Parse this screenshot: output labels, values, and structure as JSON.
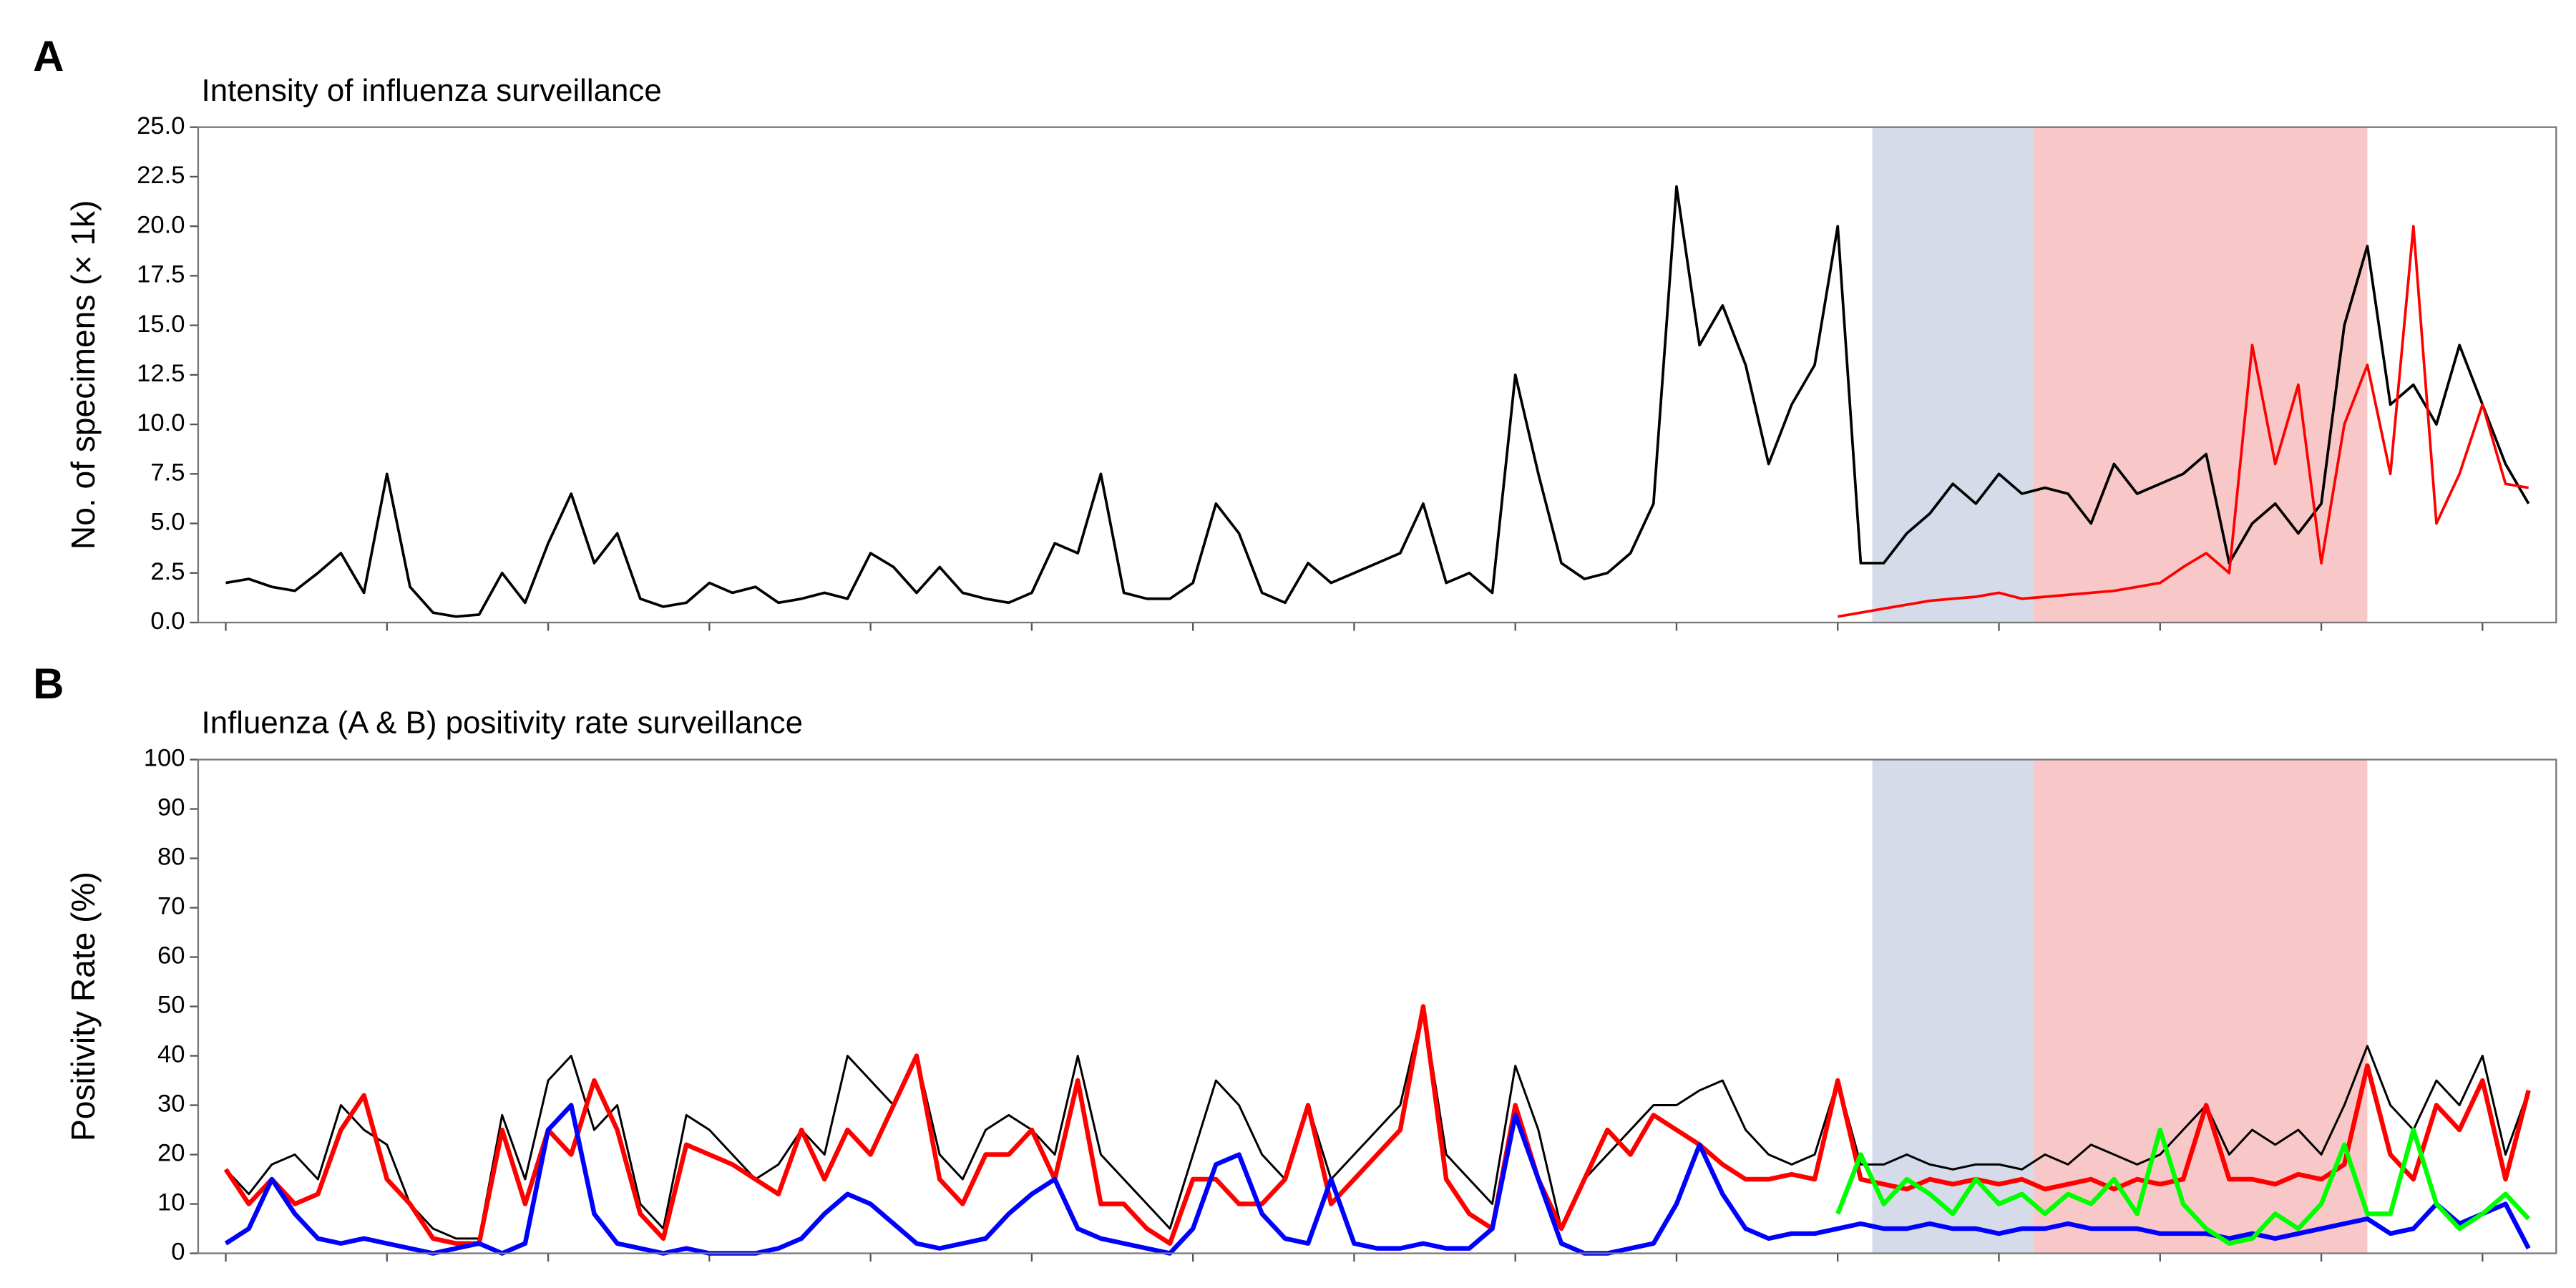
{
  "chart_data": [
    {
      "panel": "A",
      "type": "line",
      "title": "Intensity of influenza surveillance",
      "y_label": "No. of specimens (× 1k)",
      "x": [
        0,
        1,
        2,
        3,
        4,
        5,
        6,
        7,
        8,
        9,
        10,
        11,
        12,
        13,
        14,
        15,
        16,
        17,
        18,
        19,
        20,
        21,
        22,
        23,
        24,
        25,
        26,
        27,
        28,
        29,
        30,
        31,
        32,
        33,
        34,
        35,
        36,
        37,
        38,
        39,
        40,
        41,
        42,
        43,
        44,
        45,
        46,
        47,
        48,
        49,
        50,
        51,
        52,
        53,
        54,
        55,
        56,
        57,
        58,
        59,
        60,
        61,
        62,
        63,
        64,
        65,
        66,
        67,
        68,
        69,
        70,
        71,
        72,
        73,
        74,
        75,
        76,
        77,
        78,
        79,
        80,
        81,
        82,
        83,
        84,
        85,
        86,
        87,
        88,
        89,
        90,
        91,
        92,
        93,
        94,
        95,
        96,
        97,
        98,
        99,
        100
      ],
      "xlim": [
        -1.2,
        101.2
      ],
      "xticks": [
        0,
        7,
        14,
        21,
        28,
        35,
        42,
        49,
        56,
        63,
        70,
        77,
        84,
        91,
        98
      ],
      "ylim": [
        0,
        25
      ],
      "yticks": [
        {
          "value": 0,
          "label": "0.0"
        },
        {
          "value": 2.5,
          "label": "2.5"
        },
        {
          "value": 5,
          "label": "5.0"
        },
        {
          "value": 7.5,
          "label": "7.5"
        },
        {
          "value": 10,
          "label": "10.0"
        },
        {
          "value": 12.5,
          "label": "12.5"
        },
        {
          "value": 15,
          "label": "15.0"
        },
        {
          "value": 17.5,
          "label": "17.5"
        },
        {
          "value": 20,
          "label": "20.0"
        },
        {
          "value": 22.5,
          "label": "22.5"
        },
        {
          "value": 25,
          "label": "25.0"
        }
      ],
      "shaded_regions": [
        {
          "start": 71.5,
          "end": 78.5,
          "color": "#d6dbea"
        },
        {
          "start": 78.5,
          "end": 93.0,
          "color": "#f8c8c8"
        }
      ],
      "series": [
        {
          "color": "#000000",
          "line_width": 1.6,
          "values": [
            2.0,
            2.2,
            1.8,
            1.6,
            2.5,
            3.5,
            1.5,
            7.5,
            1.8,
            0.5,
            0.3,
            0.4,
            2.5,
            1.0,
            4.0,
            6.5,
            3.0,
            4.5,
            1.2,
            0.8,
            1.0,
            2.0,
            1.5,
            1.8,
            1.0,
            1.2,
            1.5,
            1.2,
            3.5,
            2.8,
            1.5,
            2.8,
            1.5,
            1.2,
            1.0,
            1.5,
            4.0,
            3.5,
            7.5,
            1.5,
            1.2,
            1.2,
            2.0,
            6.0,
            4.5,
            1.5,
            1.0,
            3.0,
            2.0,
            2.5,
            3.0,
            3.5,
            6.0,
            2.0,
            2.5,
            1.5,
            12.5,
            7.5,
            3.0,
            2.2,
            2.5,
            3.5,
            6.0,
            22.0,
            14.0,
            16.0,
            13.0,
            8.0,
            11.0,
            13.0,
            20.0,
            3.0,
            3.0,
            4.5,
            5.5,
            7.0,
            6.0,
            7.5,
            6.5,
            6.8,
            6.5,
            5.0,
            8.0,
            6.5,
            7.0,
            7.5,
            8.5,
            3.0,
            5.0,
            6.0,
            4.5,
            6.0,
            15.0,
            19.0,
            11.0,
            12.0,
            10.0,
            14.0,
            11.0,
            8.0,
            6.0
          ]
        },
        {
          "color": "#ff0000",
          "line_width": 1.6,
          "values": [
            null,
            null,
            null,
            null,
            null,
            null,
            null,
            null,
            null,
            null,
            null,
            null,
            null,
            null,
            null,
            null,
            null,
            null,
            null,
            null,
            null,
            null,
            null,
            null,
            null,
            null,
            null,
            null,
            null,
            null,
            null,
            null,
            null,
            null,
            null,
            null,
            null,
            null,
            null,
            null,
            null,
            null,
            null,
            null,
            null,
            null,
            null,
            null,
            null,
            null,
            null,
            null,
            null,
            null,
            null,
            null,
            null,
            null,
            null,
            null,
            null,
            null,
            null,
            null,
            null,
            null,
            null,
            null,
            null,
            null,
            0.3,
            0.5,
            0.7,
            0.9,
            1.1,
            1.2,
            1.3,
            1.5,
            1.2,
            1.3,
            1.4,
            1.5,
            1.6,
            1.8,
            2.0,
            2.8,
            3.5,
            2.5,
            14.0,
            8.0,
            12.0,
            3.0,
            10.0,
            13.0,
            7.5,
            20.0,
            5.0,
            7.5,
            11.0,
            7.0,
            6.8
          ]
        }
      ]
    },
    {
      "panel": "B",
      "type": "line",
      "title": "Influenza (A & B) positivity rate surveillance",
      "y_label": "Positivity Rate (%)",
      "x": [
        0,
        1,
        2,
        3,
        4,
        5,
        6,
        7,
        8,
        9,
        10,
        11,
        12,
        13,
        14,
        15,
        16,
        17,
        18,
        19,
        20,
        21,
        22,
        23,
        24,
        25,
        26,
        27,
        28,
        29,
        30,
        31,
        32,
        33,
        34,
        35,
        36,
        37,
        38,
        39,
        40,
        41,
        42,
        43,
        44,
        45,
        46,
        47,
        48,
        49,
        50,
        51,
        52,
        53,
        54,
        55,
        56,
        57,
        58,
        59,
        60,
        61,
        62,
        63,
        64,
        65,
        66,
        67,
        68,
        69,
        70,
        71,
        72,
        73,
        74,
        75,
        76,
        77,
        78,
        79,
        80,
        81,
        82,
        83,
        84,
        85,
        86,
        87,
        88,
        89,
        90,
        91,
        92,
        93,
        94,
        95,
        96,
        97,
        98,
        99,
        100
      ],
      "xlim": [
        -1.2,
        101.2
      ],
      "xticks": [
        0,
        7,
        14,
        21,
        28,
        35,
        42,
        49,
        56,
        63,
        70,
        77,
        84,
        91,
        98
      ],
      "ylim": [
        0,
        100
      ],
      "yticks": [
        0,
        10,
        20,
        30,
        40,
        50,
        60,
        70,
        80,
        90,
        100
      ],
      "shaded_regions": [
        {
          "start": 71.5,
          "end": 78.5,
          "color": "#d6dbea"
        },
        {
          "start": 78.5,
          "end": 93.0,
          "color": "#f8c8c8"
        }
      ],
      "series": [
        {
          "color": "#000000",
          "line_width": 1.3,
          "values": [
            17,
            12,
            18,
            20,
            15,
            30,
            25,
            22,
            10,
            5,
            3,
            3,
            28,
            15,
            35,
            40,
            25,
            30,
            10,
            5,
            28,
            25,
            20,
            15,
            18,
            25,
            20,
            40,
            35,
            30,
            40,
            20,
            15,
            25,
            28,
            25,
            20,
            40,
            20,
            15,
            10,
            5,
            20,
            35,
            30,
            20,
            15,
            30,
            15,
            20,
            25,
            30,
            50,
            20,
            15,
            10,
            38,
            25,
            5,
            15,
            20,
            25,
            30,
            30,
            33,
            35,
            25,
            20,
            18,
            20,
            35,
            18,
            18,
            20,
            18,
            17,
            18,
            18,
            17,
            20,
            18,
            22,
            20,
            18,
            20,
            25,
            30,
            20,
            25,
            22,
            25,
            20,
            30,
            42,
            30,
            25,
            35,
            30,
            40,
            20,
            33
          ]
        },
        {
          "color": "#ff0000",
          "line_width": 2.8,
          "values": [
            17,
            10,
            15,
            10,
            12,
            25,
            32,
            15,
            10,
            3,
            2,
            2,
            25,
            10,
            25,
            20,
            35,
            25,
            8,
            3,
            22,
            20,
            18,
            15,
            12,
            25,
            15,
            25,
            20,
            30,
            40,
            15,
            10,
            20,
            20,
            25,
            15,
            35,
            10,
            10,
            5,
            2,
            15,
            15,
            10,
            10,
            15,
            30,
            10,
            15,
            20,
            25,
            50,
            15,
            8,
            5,
            30,
            15,
            5,
            15,
            25,
            20,
            28,
            25,
            22,
            18,
            15,
            15,
            16,
            15,
            35,
            15,
            14,
            13,
            15,
            14,
            15,
            14,
            15,
            13,
            14,
            15,
            13,
            15,
            14,
            15,
            30,
            15,
            15,
            14,
            16,
            15,
            18,
            38,
            20,
            15,
            30,
            25,
            35,
            15,
            33
          ]
        },
        {
          "color": "#0000ff",
          "line_width": 2.8,
          "values": [
            2,
            5,
            15,
            8,
            3,
            2,
            3,
            2,
            1,
            0,
            1,
            2,
            0,
            2,
            25,
            30,
            8,
            2,
            1,
            0,
            1,
            0,
            0,
            0,
            1,
            3,
            8,
            12,
            10,
            6,
            2,
            1,
            2,
            3,
            8,
            12,
            15,
            5,
            3,
            2,
            1,
            0,
            5,
            18,
            20,
            8,
            3,
            2,
            15,
            2,
            1,
            1,
            2,
            1,
            1,
            5,
            28,
            15,
            2,
            0,
            0,
            1,
            2,
            10,
            22,
            12,
            5,
            3,
            4,
            4,
            5,
            6,
            5,
            5,
            6,
            5,
            5,
            4,
            5,
            5,
            6,
            5,
            5,
            5,
            4,
            4,
            4,
            3,
            4,
            3,
            4,
            5,
            6,
            7,
            4,
            5,
            10,
            6,
            8,
            10,
            1
          ]
        },
        {
          "color": "#00ff00",
          "line_width": 2.8,
          "values": [
            null,
            null,
            null,
            null,
            null,
            null,
            null,
            null,
            null,
            null,
            null,
            null,
            null,
            null,
            null,
            null,
            null,
            null,
            null,
            null,
            null,
            null,
            null,
            null,
            null,
            null,
            null,
            null,
            null,
            null,
            null,
            null,
            null,
            null,
            null,
            null,
            null,
            null,
            null,
            null,
            null,
            null,
            null,
            null,
            null,
            null,
            null,
            null,
            null,
            null,
            null,
            null,
            null,
            null,
            null,
            null,
            null,
            null,
            null,
            null,
            null,
            null,
            null,
            null,
            null,
            null,
            null,
            null,
            null,
            null,
            8,
            20,
            10,
            15,
            12,
            8,
            15,
            10,
            12,
            8,
            12,
            10,
            15,
            8,
            25,
            10,
            5,
            2,
            3,
            8,
            5,
            10,
            22,
            8,
            8,
            25,
            10,
            5,
            8,
            12,
            7
          ]
        }
      ]
    }
  ]
}
